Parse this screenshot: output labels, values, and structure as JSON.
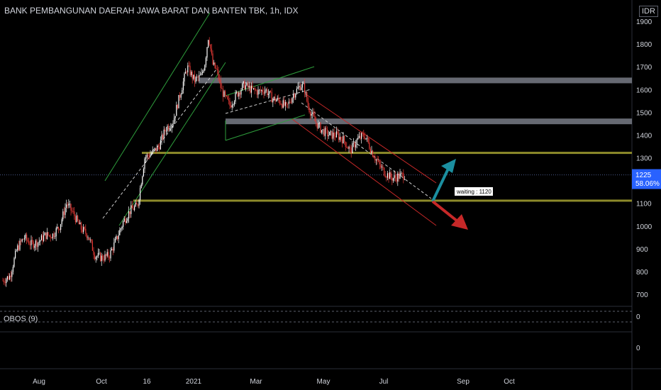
{
  "header": {
    "title": "BANK PEMBANGUNAN DAERAH JAWA BARAT DAN BANTEN TBK, 1h, IDX",
    "currency": "IDR"
  },
  "indicator": {
    "label": "OBOS (9)",
    "axis_ticks": [
      "0",
      "0"
    ]
  },
  "colors": {
    "candle_up": "#ffffff",
    "candle_down": "#e53935",
    "zone_grey": "#787b86",
    "zone_olive": "#8d8a2a",
    "trend_green": "#2e9e3c",
    "trend_red": "#c62828",
    "arrow_up": "#1b8fa0",
    "arrow_down": "#c62828",
    "price_tag": "#2962ff"
  },
  "chart_data": {
    "type": "candlestick",
    "y_axis": {
      "ticks": [
        700,
        800,
        900,
        1000,
        1100,
        1200,
        1300,
        1400,
        1500,
        1600,
        1700,
        1800,
        1900
      ],
      "ylim": [
        650,
        1960
      ],
      "side": "right"
    },
    "x_axis": {
      "tick_labels": [
        "Aug",
        "Oct",
        "16",
        "2021",
        "Mar",
        "May",
        "Jul",
        "Sep",
        "Oct"
      ]
    },
    "price_path": [
      [
        0,
        760
      ],
      [
        10,
        780
      ],
      [
        20,
        900
      ],
      [
        30,
        950
      ],
      [
        40,
        920
      ],
      [
        50,
        930
      ],
      [
        60,
        960
      ],
      [
        70,
        960
      ],
      [
        80,
        1000
      ],
      [
        90,
        1100
      ],
      [
        100,
        1050
      ],
      [
        110,
        990
      ],
      [
        120,
        960
      ],
      [
        130,
        870
      ],
      [
        140,
        860
      ],
      [
        150,
        870
      ],
      [
        160,
        940
      ],
      [
        170,
        1020
      ],
      [
        180,
        1070
      ],
      [
        190,
        1090
      ],
      [
        200,
        1300
      ],
      [
        210,
        1320
      ],
      [
        220,
        1350
      ],
      [
        230,
        1430
      ],
      [
        240,
        1460
      ],
      [
        250,
        1580
      ],
      [
        260,
        1700
      ],
      [
        270,
        1640
      ],
      [
        280,
        1660
      ],
      [
        285,
        1720
      ],
      [
        290,
        1840
      ],
      [
        296,
        1710
      ],
      [
        302,
        1680
      ],
      [
        308,
        1600
      ],
      [
        314,
        1560
      ],
      [
        320,
        1530
      ],
      [
        330,
        1580
      ],
      [
        340,
        1620
      ],
      [
        350,
        1600
      ],
      [
        360,
        1590
      ],
      [
        370,
        1600
      ],
      [
        380,
        1560
      ],
      [
        390,
        1550
      ],
      [
        400,
        1520
      ],
      [
        410,
        1580
      ],
      [
        420,
        1620
      ],
      [
        425,
        1610
      ],
      [
        430,
        1530
      ],
      [
        440,
        1460
      ],
      [
        450,
        1420
      ],
      [
        460,
        1400
      ],
      [
        470,
        1400
      ],
      [
        480,
        1380
      ],
      [
        490,
        1330
      ],
      [
        500,
        1380
      ],
      [
        510,
        1400
      ],
      [
        520,
        1330
      ],
      [
        530,
        1270
      ],
      [
        540,
        1230
      ],
      [
        550,
        1210
      ],
      [
        560,
        1220
      ],
      [
        567,
        1225
      ]
    ],
    "last_price": 1225,
    "last_change": "58.06%",
    "levels": [
      {
        "kind": "zone",
        "price": 1640,
        "color": "grey"
      },
      {
        "kind": "zone",
        "price": 1460,
        "color": "grey"
      },
      {
        "kind": "line",
        "price": 1320,
        "color": "olive"
      },
      {
        "kind": "line",
        "price": 1110,
        "color": "olive"
      }
    ],
    "annotation": {
      "text": "waiting : 1120"
    },
    "grid": false,
    "legend": "none"
  }
}
